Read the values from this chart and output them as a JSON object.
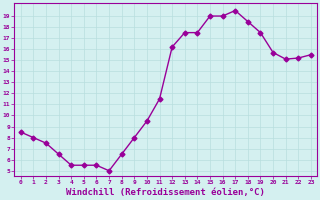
{
  "x": [
    0,
    1,
    2,
    3,
    4,
    5,
    6,
    7,
    8,
    9,
    10,
    11,
    12,
    13,
    14,
    15,
    16,
    17,
    18,
    19,
    20,
    21,
    22,
    23
  ],
  "y": [
    8.5,
    8.0,
    7.5,
    6.5,
    5.5,
    5.5,
    5.5,
    5.0,
    6.5,
    8.0,
    9.5,
    11.5,
    16.2,
    17.5,
    17.5,
    19.0,
    19.0,
    19.5,
    18.5,
    17.5,
    15.7,
    15.1,
    15.2,
    15.5
  ],
  "line_color": "#990099",
  "marker": "D",
  "marker_size": 2.5,
  "linewidth": 1.0,
  "xlabel": "Windchill (Refroidissement éolien,°C)",
  "xlabel_fontsize": 6.5,
  "xtick_labels": [
    "0",
    "1",
    "2",
    "3",
    "4",
    "5",
    "6",
    "7",
    "8",
    "9",
    "10",
    "11",
    "12",
    "13",
    "14",
    "15",
    "16",
    "17",
    "18",
    "19",
    "20",
    "21",
    "22",
    "23"
  ],
  "ytick_labels": [
    "5",
    "6",
    "7",
    "8",
    "9",
    "10",
    "11",
    "12",
    "13",
    "14",
    "15",
    "16",
    "17",
    "18",
    "19"
  ],
  "ylim": [
    4.5,
    20.2
  ],
  "xlim": [
    -0.5,
    23.5
  ],
  "background_color": "#d4f0f0",
  "grid_color": "#b8dede",
  "tick_color": "#990099",
  "figwidth": 3.2,
  "figheight": 2.0,
  "dpi": 100
}
